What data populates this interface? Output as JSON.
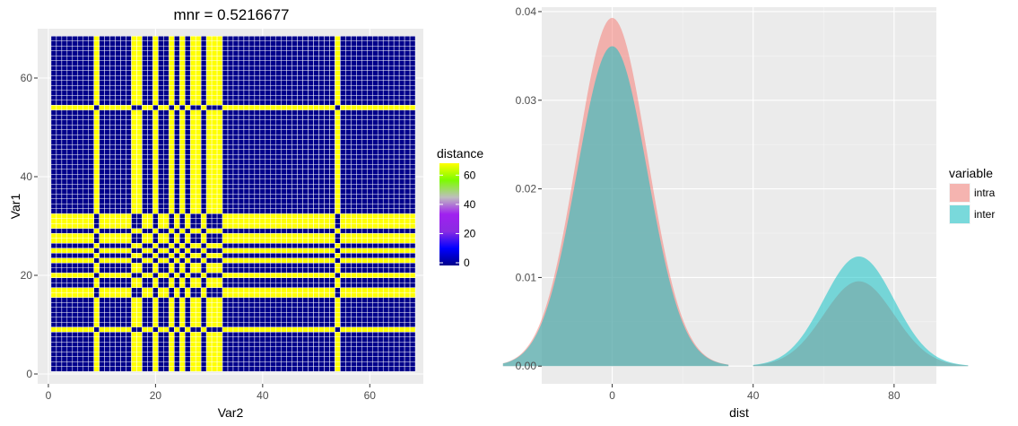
{
  "chart_data": [
    {
      "type": "heatmap",
      "title": "mnr = 0.5216677",
      "xlabel": "Var2",
      "ylabel": "Var1",
      "n": 68,
      "xlim": [
        -2,
        70
      ],
      "ylim": [
        -2,
        70
      ],
      "xticks": [
        0,
        20,
        40,
        60
      ],
      "yticks": [
        0,
        20,
        40,
        60
      ],
      "high_indices": [
        9,
        16,
        17,
        20,
        23,
        25,
        27,
        28,
        30,
        31,
        32,
        54
      ],
      "low_value": 0,
      "high_value": 70,
      "background": "#ebebeb",
      "grid": true,
      "legend": {
        "title": "distance",
        "placement": "right",
        "ticks": [
          0,
          20,
          40,
          60
        ],
        "colors": [
          "#00008b",
          "#0000ff",
          "#8a2be2",
          "#a020f0",
          "#bebebe",
          "#7cfc00",
          "#ffff00"
        ],
        "range": [
          0,
          70
        ]
      }
    },
    {
      "type": "area",
      "title": "",
      "xlabel": "dist",
      "ylabel": "",
      "xlim": [
        -20,
        92
      ],
      "ylim": [
        -0.002,
        0.0405
      ],
      "xticks": [
        0,
        40,
        80
      ],
      "yticks": [
        0.0,
        0.01,
        0.02,
        0.03,
        0.04
      ],
      "ytick_labels": [
        "0.00",
        "0.01",
        "0.02",
        "0.03",
        "0.04"
      ],
      "background": "#ebebeb",
      "grid": true,
      "legend": {
        "title": "variable",
        "placement": "right"
      },
      "series": [
        {
          "name": "intra",
          "color": "#f8766d",
          "opacity": 0.5,
          "components": [
            {
              "mean": 0,
              "sd": 10,
              "weight": 0.985,
              "range": [
                -31,
                33
              ]
            },
            {
              "mean": 70,
              "sd": 10,
              "weight": 0.24,
              "range": [
                40,
                101
              ]
            }
          ]
        },
        {
          "name": "inter",
          "color": "#00bfc4",
          "opacity": 0.5,
          "components": [
            {
              "mean": 0,
              "sd": 10,
              "weight": 0.905,
              "range": [
                -31,
                33
              ]
            },
            {
              "mean": 70,
              "sd": 10,
              "weight": 0.31,
              "range": [
                40,
                101
              ]
            }
          ]
        }
      ]
    }
  ]
}
